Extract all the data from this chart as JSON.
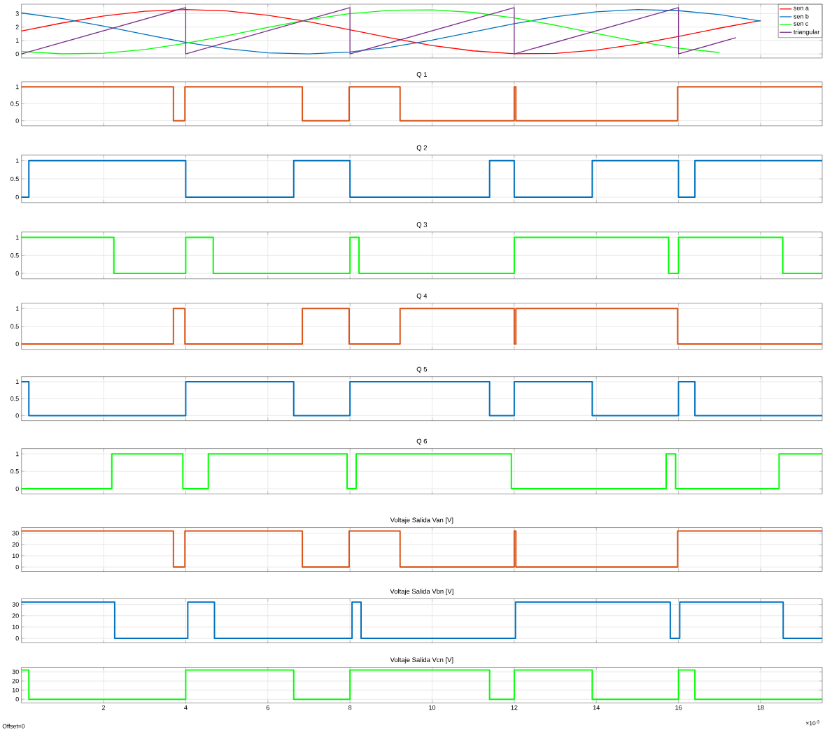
{
  "chart_data": [
    {
      "type": "line",
      "xlim": [
        0,
        19.5
      ],
      "ylim": [
        -0.3,
        3.7
      ],
      "xticks": [
        2,
        4,
        6,
        8,
        10,
        12,
        14,
        16,
        18
      ],
      "yticks": [
        0,
        1,
        2,
        3
      ],
      "grid": true,
      "tick_labels": "y",
      "legend": "top right",
      "series": [
        {
          "name": "sen a",
          "color": "#ff0000",
          "x": [
            0,
            1,
            2,
            3,
            4,
            5,
            6,
            7,
            8,
            9,
            10,
            11,
            12,
            13,
            14,
            15,
            16,
            17,
            18
          ],
          "values": [
            1.71,
            2.31,
            2.82,
            3.17,
            3.3,
            3.2,
            2.88,
            2.39,
            1.8,
            1.18,
            0.63,
            0.23,
            0.02,
            0.04,
            0.29,
            0.73,
            1.3,
            1.92,
            2.49
          ]
        },
        {
          "name": "sen b",
          "color": "#0072bd",
          "x": [
            0,
            1,
            2,
            3,
            4,
            5,
            6,
            7,
            8,
            9,
            10,
            11,
            12,
            13,
            14,
            15,
            16,
            17,
            18
          ],
          "values": [
            3.05,
            2.63,
            2.07,
            1.46,
            0.86,
            0.39,
            0.08,
            0.0,
            0.15,
            0.51,
            1.03,
            1.64,
            2.25,
            2.77,
            3.14,
            3.3,
            3.22,
            2.93,
            2.45
          ]
        },
        {
          "name": "sen c",
          "color": "#00ff00",
          "x": [
            0,
            1,
            2,
            3,
            4,
            5,
            6,
            7,
            8,
            9,
            10,
            11,
            12,
            13,
            14,
            15,
            16,
            17
          ],
          "values": [
            0.19,
            0.01,
            0.06,
            0.33,
            0.79,
            1.36,
            1.98,
            2.55,
            3.0,
            3.25,
            3.28,
            3.09,
            2.68,
            2.14,
            1.52,
            0.93,
            0.43,
            0.11
          ]
        },
        {
          "name": "triangular",
          "color": "#7e2f8e",
          "x": [
            0,
            4,
            4,
            8,
            8,
            12,
            12,
            16,
            16,
            17.4
          ],
          "values": [
            0,
            3.45,
            0,
            3.45,
            0,
            3.45,
            0,
            3.45,
            0,
            1.21
          ]
        }
      ]
    },
    {
      "type": "step",
      "title": "Q 1",
      "xlim": [
        0,
        19.5
      ],
      "ylim": [
        -0.15,
        1.15
      ],
      "xticks": [
        2,
        4,
        6,
        8,
        10,
        12,
        14,
        16,
        18
      ],
      "yticks": [
        0,
        0.5,
        1
      ],
      "grid": true,
      "tick_labels": "y",
      "series": [
        {
          "color": "#d95319",
          "x": [
            0,
            3.7,
            3.98,
            6.84,
            7.98,
            9.22,
            12.0,
            12.04,
            15.98,
            19.5
          ],
          "values": [
            1,
            0,
            1,
            0,
            1,
            0,
            1,
            0,
            1,
            1
          ]
        }
      ]
    },
    {
      "type": "step",
      "title": "Q 2",
      "xlim": [
        0,
        19.5
      ],
      "ylim": [
        -0.15,
        1.15
      ],
      "xticks": [
        2,
        4,
        6,
        8,
        10,
        12,
        14,
        16,
        18
      ],
      "yticks": [
        0,
        0.5,
        1
      ],
      "grid": true,
      "tick_labels": "y",
      "series": [
        {
          "color": "#0072bd",
          "x": [
            0,
            0.18,
            4.0,
            6.63,
            8.0,
            11.4,
            12.0,
            13.9,
            16.0,
            16.4,
            19.5
          ],
          "values": [
            0,
            1,
            0,
            1,
            0,
            1,
            0,
            1,
            0,
            1,
            1
          ]
        }
      ]
    },
    {
      "type": "step",
      "title": "Q 3",
      "xlim": [
        0,
        19.5
      ],
      "ylim": [
        -0.15,
        1.15
      ],
      "xticks": [
        2,
        4,
        6,
        8,
        10,
        12,
        14,
        16,
        18
      ],
      "yticks": [
        0,
        0.5,
        1
      ],
      "grid": true,
      "tick_labels": "y",
      "series": [
        {
          "color": "#00ff00",
          "x": [
            0,
            2.25,
            4.0,
            4.67,
            8.0,
            8.22,
            12.0,
            15.76,
            16.0,
            18.54,
            19.5
          ],
          "values": [
            1,
            0,
            1,
            0,
            1,
            0,
            1,
            0,
            1,
            0,
            0
          ]
        }
      ]
    },
    {
      "type": "step",
      "title": "Q 4",
      "xlim": [
        0,
        19.5
      ],
      "ylim": [
        -0.15,
        1.15
      ],
      "xticks": [
        2,
        4,
        6,
        8,
        10,
        12,
        14,
        16,
        18
      ],
      "yticks": [
        0,
        0.5,
        1
      ],
      "grid": true,
      "tick_labels": "y",
      "series": [
        {
          "color": "#d95319",
          "x": [
            0,
            3.7,
            3.98,
            6.84,
            7.98,
            9.22,
            12.0,
            12.04,
            15.98,
            19.5
          ],
          "values": [
            0,
            1,
            0,
            1,
            0,
            1,
            0,
            1,
            0,
            0
          ]
        }
      ]
    },
    {
      "type": "step",
      "title": "Q 5",
      "xlim": [
        0,
        19.5
      ],
      "ylim": [
        -0.15,
        1.15
      ],
      "xticks": [
        2,
        4,
        6,
        8,
        10,
        12,
        14,
        16,
        18
      ],
      "yticks": [
        0,
        0.5,
        1
      ],
      "grid": true,
      "tick_labels": "y",
      "series": [
        {
          "color": "#0072bd",
          "x": [
            0,
            0.18,
            4.0,
            6.63,
            8.0,
            11.4,
            12.0,
            13.9,
            16.0,
            16.4,
            19.5
          ],
          "values": [
            1,
            0,
            1,
            0,
            1,
            0,
            1,
            0,
            1,
            0,
            0
          ]
        }
      ]
    },
    {
      "type": "step",
      "title": "Q 6",
      "xlim": [
        0,
        19.5
      ],
      "ylim": [
        -0.15,
        1.15
      ],
      "xticks": [
        2,
        4,
        6,
        8,
        10,
        12,
        14,
        16,
        18
      ],
      "yticks": [
        0,
        0.5,
        1
      ],
      "grid": true,
      "tick_labels": "y",
      "series": [
        {
          "color": "#00ff00",
          "x": [
            0,
            2.2,
            3.93,
            4.55,
            7.93,
            8.15,
            11.93,
            15.7,
            15.93,
            18.45,
            19.5
          ],
          "values": [
            0,
            1,
            0,
            1,
            0,
            1,
            0,
            1,
            0,
            1,
            1
          ]
        }
      ]
    },
    {
      "type": "step",
      "title": "Voltaje Salida Van [V]",
      "xlim": [
        0,
        19.5
      ],
      "ylim": [
        -4,
        35
      ],
      "xticks": [
        2,
        4,
        6,
        8,
        10,
        12,
        14,
        16,
        18
      ],
      "yticks": [
        0,
        10,
        20,
        30
      ],
      "grid": true,
      "tick_labels": "y",
      "series": [
        {
          "color": "#d95319",
          "x": [
            0,
            3.7,
            3.98,
            6.84,
            7.98,
            9.22,
            12.0,
            12.04,
            15.98,
            19.5
          ],
          "values": [
            32,
            0,
            32,
            0,
            32,
            0,
            32,
            0,
            32,
            32
          ]
        }
      ]
    },
    {
      "type": "step",
      "title": "Voltaje Salida Vbn [V]",
      "xlim": [
        0,
        19.5
      ],
      "ylim": [
        -4,
        35
      ],
      "xticks": [
        2,
        4,
        6,
        8,
        10,
        12,
        14,
        16,
        18
      ],
      "yticks": [
        0,
        10,
        20,
        30
      ],
      "grid": true,
      "tick_labels": "y",
      "series": [
        {
          "color": "#0072bd",
          "x": [
            0,
            2.27,
            4.05,
            4.7,
            8.05,
            8.27,
            12.03,
            15.8,
            16.03,
            18.55,
            19.5
          ],
          "values": [
            32,
            0,
            32,
            0,
            32,
            0,
            32,
            0,
            32,
            0,
            0
          ]
        }
      ]
    },
    {
      "type": "step",
      "title": "Voltaje Salida Vcn [V]",
      "xlim": [
        0,
        19.5
      ],
      "ylim": [
        -4,
        35
      ],
      "xticks": [
        2,
        4,
        6,
        8,
        10,
        12,
        14,
        16,
        18
      ],
      "yticks": [
        0,
        10,
        20,
        30
      ],
      "grid": true,
      "annotations": [
        "Offset=0",
        "×10$^{-3}$"
      ],
      "series": [
        {
          "color": "#00ff00",
          "x": [
            0,
            0.18,
            4.0,
            6.63,
            8.0,
            11.4,
            12.0,
            13.9,
            16.0,
            16.4,
            19.5
          ],
          "values": [
            32,
            0,
            32,
            0,
            32,
            0,
            32,
            0,
            32,
            0,
            0
          ]
        }
      ]
    }
  ]
}
